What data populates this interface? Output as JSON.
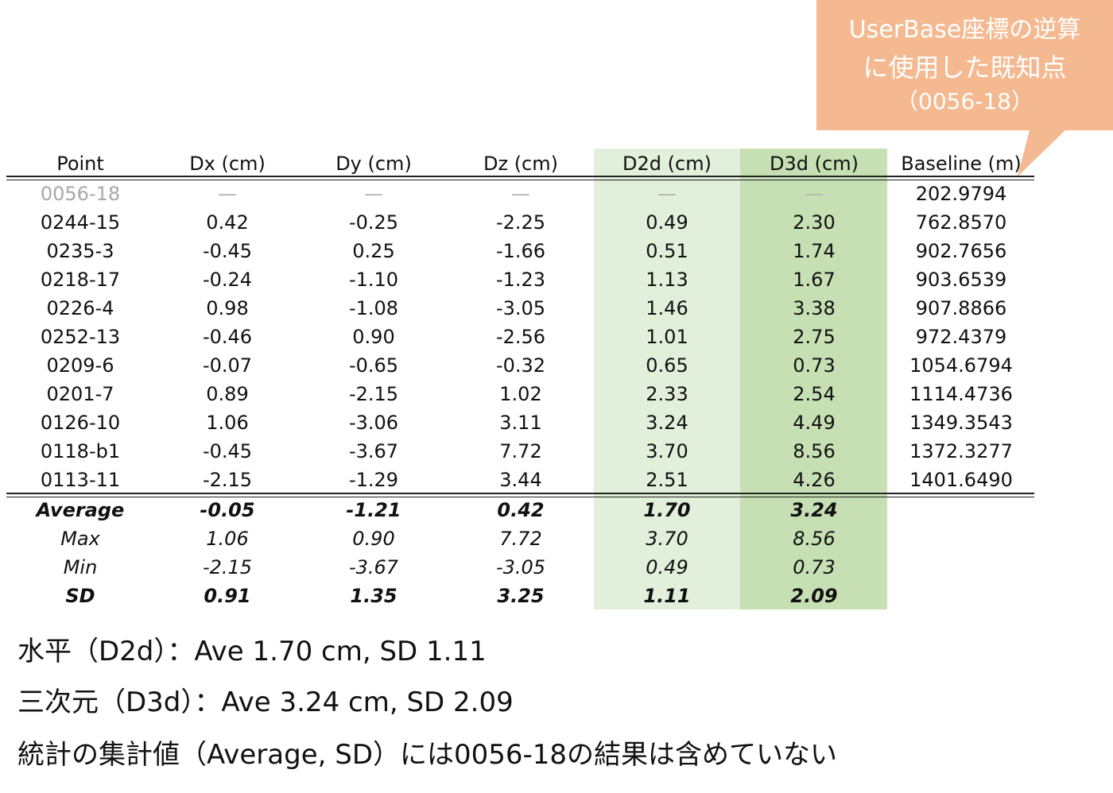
{
  "callout": {
    "line1": "UserBase座標の逆算",
    "line2": "に使用した既知点",
    "line3": "（0056-18）",
    "color": "#f4b990"
  },
  "table": {
    "headers": [
      "Point",
      "Dx (cm)",
      "Dy (cm)",
      "Dz (cm)",
      "D2d (cm)",
      "D3d (cm)",
      "Baseline (m)"
    ],
    "rows": [
      [
        "0056-18",
        "—",
        "—",
        "—",
        "—",
        "—",
        "202.9794"
      ],
      [
        "0244-15",
        "0.42",
        "-0.25",
        "-2.25",
        "0.49",
        "2.30",
        "762.8570"
      ],
      [
        "0235-3",
        "-0.45",
        "0.25",
        "-1.66",
        "0.51",
        "1.74",
        "902.7656"
      ],
      [
        "0218-17",
        "-0.24",
        "-1.10",
        "-1.23",
        "1.13",
        "1.67",
        "903.6539"
      ],
      [
        "0226-4",
        "0.98",
        "-1.08",
        "-3.05",
        "1.46",
        "3.38",
        "907.8866"
      ],
      [
        "0252-13",
        "-0.46",
        "0.90",
        "-2.56",
        "1.01",
        "2.75",
        "972.4379"
      ],
      [
        "0209-6",
        "-0.07",
        "-0.65",
        "-0.32",
        "0.65",
        "0.73",
        "1054.6794"
      ],
      [
        "0201-7",
        "0.89",
        "-2.15",
        "1.02",
        "2.33",
        "2.54",
        "1114.4736"
      ],
      [
        "0126-10",
        "1.06",
        "-3.06",
        "3.11",
        "3.24",
        "4.49",
        "1349.3543"
      ],
      [
        "0118-b1",
        "-0.45",
        "-3.67",
        "7.72",
        "3.70",
        "8.56",
        "1372.3277"
      ],
      [
        "0113-11",
        "-2.15",
        "-1.29",
        "3.44",
        "2.51",
        "4.26",
        "1401.6490"
      ]
    ],
    "stats": [
      [
        "Average",
        "-0.05",
        "-1.21",
        "0.42",
        "1.70",
        "3.24"
      ],
      [
        "Max",
        "1.06",
        "0.90",
        "7.72",
        "3.70",
        "8.56"
      ],
      [
        "Min",
        "-2.15",
        "-3.67",
        "-3.05",
        "0.49",
        "0.73"
      ],
      [
        "SD",
        "0.91",
        "1.35",
        "3.25",
        "1.11",
        "2.09"
      ]
    ],
    "d2d_color": "#e2efda",
    "d3d_color": "#c6e0b4"
  },
  "notes": {
    "horizontal": "水平（D2d）：Ave 1.70 cm, SD 1.11",
    "three_d": "三次元（D3d）：Ave 3.24 cm, SD 2.09",
    "stat_note": "統計の集計値（Average, SD）には0056-18の結果は含めていない"
  }
}
